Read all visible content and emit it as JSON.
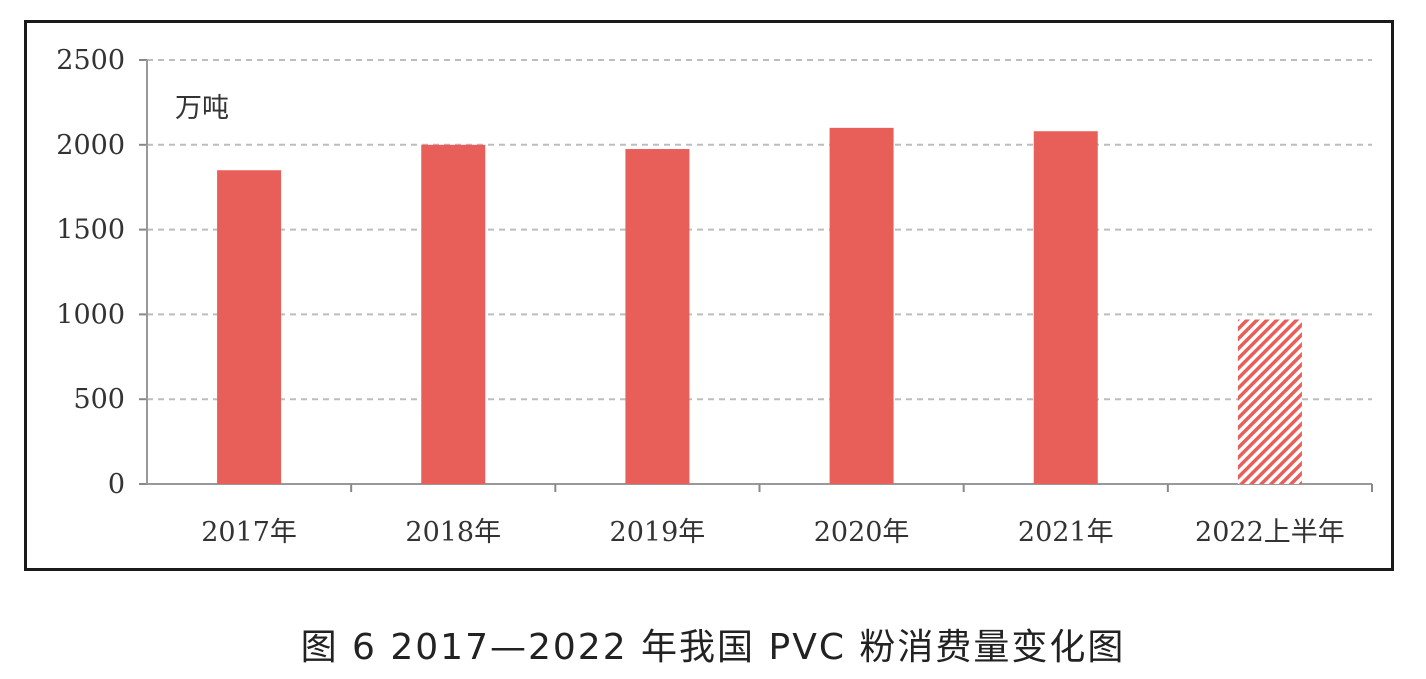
{
  "caption": "图 6  2017—2022 年我国 PVC 粉消费量变化图",
  "chart_data": {
    "type": "bar",
    "categories": [
      "2017年",
      "2018年",
      "2019年",
      "2020年",
      "2021年",
      "2022上半年"
    ],
    "values": [
      1850,
      2000,
      1975,
      2100,
      2080,
      970
    ],
    "ylabel": "万吨",
    "ylim": [
      0,
      2500
    ],
    "yticks": [
      0,
      500,
      1000,
      1500,
      2000,
      2500
    ],
    "grid": true,
    "bar_color": "#e85f5a",
    "hatched_last_bar": true
  }
}
